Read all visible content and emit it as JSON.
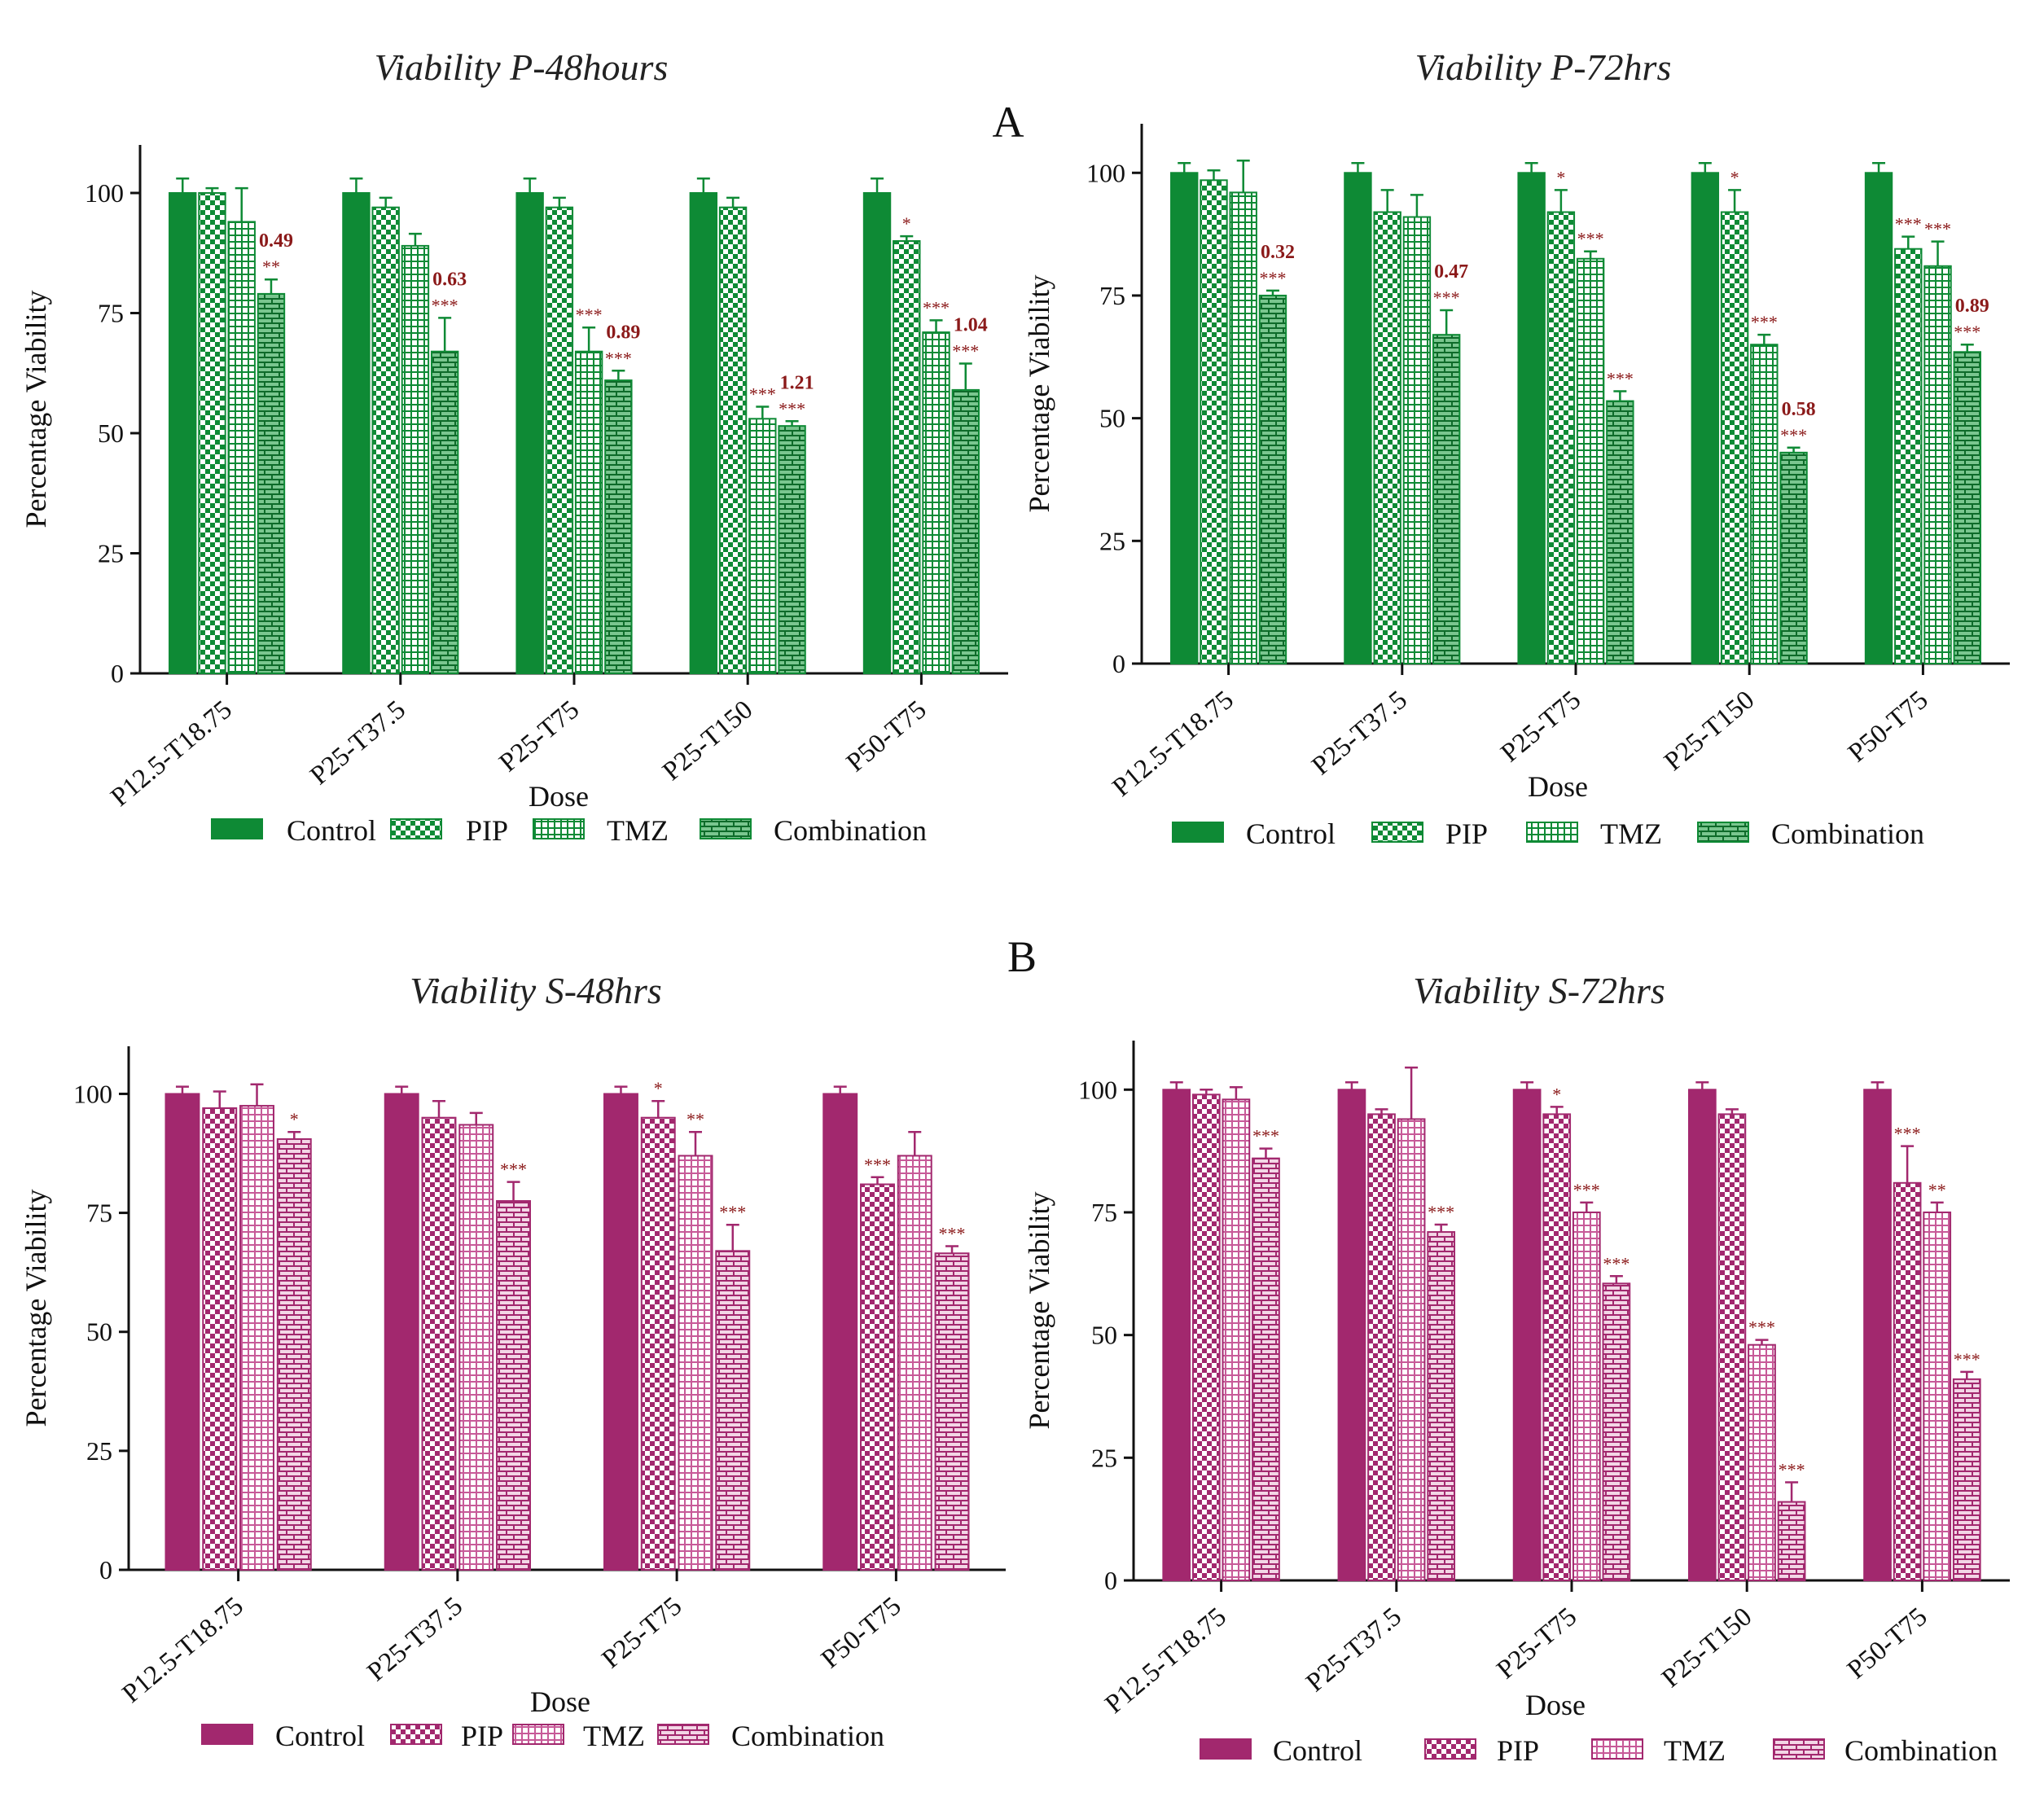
{
  "panel_labels": {
    "a": "A",
    "b": "B"
  },
  "legend": {
    "control": "Control",
    "pip": "PIP",
    "tmz": "TMZ",
    "combination": "Combination"
  },
  "colors": {
    "green": "#0e8a35",
    "green_light": "#ffffff",
    "magenta": "#a2286e",
    "magenta_light": "#ffffff",
    "sig_text": "#8b1a1a"
  },
  "chart_data": [
    {
      "id": "p48",
      "type": "bar",
      "title": "Viability P-48hours",
      "xlabel": "Dose",
      "ylabel": "Percentage Viability",
      "ylim": [
        0,
        110
      ],
      "yticks": [
        "0",
        "25",
        "50",
        "75",
        "100"
      ],
      "theme": "green",
      "categories": [
        "P12.5-T18.75",
        "P25-T37.5",
        "P25-T75",
        "P25-T150",
        "P50-T75"
      ],
      "series": [
        {
          "name": "Control",
          "values": [
            100,
            100,
            100,
            100,
            100
          ],
          "errors": [
            3,
            3,
            3,
            3,
            3
          ],
          "sig": [
            "",
            "",
            "",
            "",
            ""
          ]
        },
        {
          "name": "PIP",
          "values": [
            100,
            97,
            97,
            97,
            90
          ],
          "errors": [
            1,
            2,
            2,
            2,
            1
          ],
          "sig": [
            "",
            "",
            "",
            "",
            "*"
          ]
        },
        {
          "name": "TMZ",
          "values": [
            94,
            89,
            67,
            53,
            71
          ],
          "errors": [
            7,
            2.5,
            5,
            2.5,
            2.5
          ],
          "sig": [
            "",
            "",
            "***",
            "***",
            "***"
          ]
        },
        {
          "name": "Combination",
          "values": [
            79,
            67,
            61,
            51.5,
            59
          ],
          "errors": [
            3,
            7,
            2,
            1,
            5.5
          ],
          "sig": [
            "**",
            "***",
            "***",
            "***",
            "***"
          ]
        }
      ],
      "ci_labels": [
        "0.49",
        "0.63",
        "0.89",
        "1.21",
        "1.04"
      ]
    },
    {
      "id": "p72",
      "type": "bar",
      "title": "Viability P-72hrs",
      "xlabel": "Dose",
      "ylabel": "Percentage Viability",
      "ylim": [
        0,
        110
      ],
      "yticks": [
        "0",
        "25",
        "50",
        "75",
        "100"
      ],
      "theme": "green",
      "categories": [
        "P12.5-T18.75",
        "P25-T37.5",
        "P25-T75",
        "P25-T150",
        "P50-T75"
      ],
      "series": [
        {
          "name": "Control",
          "values": [
            100,
            100,
            100,
            100,
            100
          ],
          "errors": [
            2,
            2,
            2,
            2,
            2
          ],
          "sig": [
            "",
            "",
            "",
            "",
            ""
          ]
        },
        {
          "name": "PIP",
          "values": [
            98.5,
            92,
            92,
            92,
            84.5
          ],
          "errors": [
            2,
            4.5,
            4.5,
            4.5,
            2.5
          ],
          "sig": [
            "",
            "",
            "*",
            "*",
            "***"
          ]
        },
        {
          "name": "TMZ",
          "values": [
            96,
            91,
            82.5,
            65,
            81
          ],
          "errors": [
            6.5,
            4.5,
            1.5,
            2,
            5
          ],
          "sig": [
            "",
            "",
            "***",
            "***",
            "***"
          ]
        },
        {
          "name": "Combination",
          "values": [
            75,
            67,
            53.5,
            43,
            63.5
          ],
          "errors": [
            1,
            5,
            2,
            1,
            1.5
          ],
          "sig": [
            "***",
            "***",
            "***",
            "***",
            "***"
          ]
        }
      ],
      "ci_labels": [
        "0.32",
        "0.47",
        "",
        "0.58",
        "0.89"
      ]
    },
    {
      "id": "s48",
      "type": "bar",
      "title": "Viability S-48hrs",
      "xlabel": "Dose",
      "ylabel": "Percentage Viability",
      "ylim": [
        0,
        110
      ],
      "yticks": [
        "0",
        "25",
        "50",
        "75",
        "100"
      ],
      "theme": "magenta",
      "categories": [
        "P12.5-T18.75",
        "P25-T37.5",
        "P25-T75",
        "P50-T75"
      ],
      "series": [
        {
          "name": "Control",
          "values": [
            100,
            100,
            100,
            100
          ],
          "errors": [
            1.5,
            1.5,
            1.5,
            1.5
          ],
          "sig": [
            "",
            "",
            "",
            ""
          ]
        },
        {
          "name": "PIP",
          "values": [
            97,
            95,
            95,
            81
          ],
          "errors": [
            3.5,
            3.5,
            3.5,
            1.5
          ],
          "sig": [
            "",
            "",
            "*",
            "***"
          ]
        },
        {
          "name": "TMZ",
          "values": [
            97.5,
            93.5,
            87,
            87
          ],
          "errors": [
            4.5,
            2.5,
            5,
            5
          ],
          "sig": [
            "",
            "",
            "**",
            ""
          ]
        },
        {
          "name": "Combination",
          "values": [
            90.5,
            77.5,
            67,
            66.5
          ],
          "errors": [
            1.5,
            4,
            5.5,
            1.5
          ],
          "sig": [
            "*",
            "***",
            "***",
            "***"
          ]
        }
      ]
    },
    {
      "id": "s72",
      "type": "bar",
      "title": "Viability S-72hrs",
      "xlabel": "Dose",
      "ylabel": "Percentage Viability",
      "ylim": [
        0,
        110
      ],
      "yticks": [
        "0",
        "25",
        "50",
        "75",
        "100"
      ],
      "theme": "magenta",
      "categories": [
        "P12.5-T18.75",
        "P25-T37.5",
        "P25-T75",
        "P25-T150",
        "P50-T75"
      ],
      "series": [
        {
          "name": "Control",
          "values": [
            100,
            100,
            100,
            100,
            100
          ],
          "errors": [
            1.5,
            1.5,
            1.5,
            1.5,
            1.5
          ],
          "sig": [
            "",
            "",
            "",
            "",
            ""
          ]
        },
        {
          "name": "PIP",
          "values": [
            99,
            95,
            95,
            95,
            81
          ],
          "errors": [
            1,
            1,
            1.5,
            1,
            7.5
          ],
          "sig": [
            "",
            "",
            "*",
            "",
            "***"
          ]
        },
        {
          "name": "TMZ",
          "values": [
            98,
            94,
            75,
            48,
            75
          ],
          "errors": [
            2.5,
            10.5,
            2,
            1,
            2
          ],
          "sig": [
            "",
            "",
            "***",
            "***",
            "**"
          ]
        },
        {
          "name": "Combination",
          "values": [
            86,
            71,
            60.5,
            16,
            41
          ],
          "errors": [
            2,
            1.5,
            1.5,
            4,
            1.5
          ],
          "sig": [
            "***",
            "***",
            "***",
            "***",
            "***"
          ]
        }
      ]
    }
  ]
}
